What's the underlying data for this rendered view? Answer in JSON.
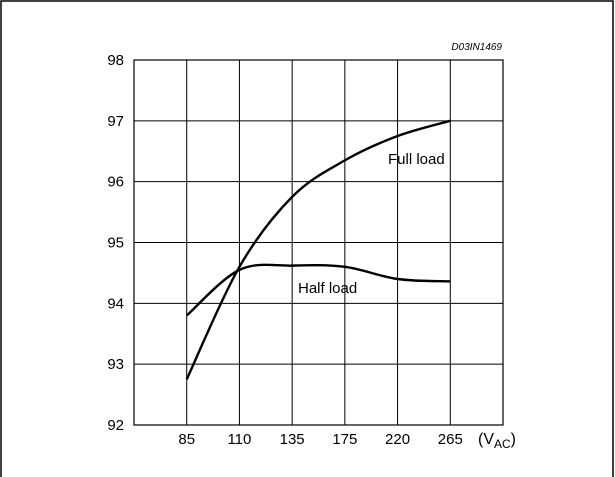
{
  "chart_data": {
    "type": "line",
    "title": "",
    "figure_code": "D03IN1469",
    "xlabel": "",
    "x_unit": {
      "prefix": "(V",
      "subscript": "AC",
      "suffix": ")"
    },
    "ylabel": "",
    "categories": [
      "85",
      "110",
      "135",
      "175",
      "220",
      "265"
    ],
    "ylim": [
      92,
      98
    ],
    "y_ticks": [
      "92",
      "93",
      "94",
      "95",
      "96",
      "97",
      "98"
    ],
    "grid": true,
    "legend": "none",
    "series": [
      {
        "name": "Full load",
        "color": "#000000",
        "points": [
          {
            "x": "85",
            "y": 92.75
          },
          {
            "x": "110",
            "y": 94.6
          },
          {
            "x": "135",
            "y": 95.75
          },
          {
            "x": "175",
            "y": 96.35
          },
          {
            "x": "220",
            "y": 96.75
          },
          {
            "x": "265",
            "y": 97.0
          }
        ]
      },
      {
        "name": "Half load",
        "color": "#000000",
        "points": [
          {
            "x": "85",
            "y": 93.8
          },
          {
            "x": "110",
            "y": 94.55
          },
          {
            "x": "135",
            "y": 94.62
          },
          {
            "x": "175",
            "y": 94.6
          },
          {
            "x": "220",
            "y": 94.4
          },
          {
            "x": "265",
            "y": 94.36
          }
        ]
      }
    ]
  }
}
